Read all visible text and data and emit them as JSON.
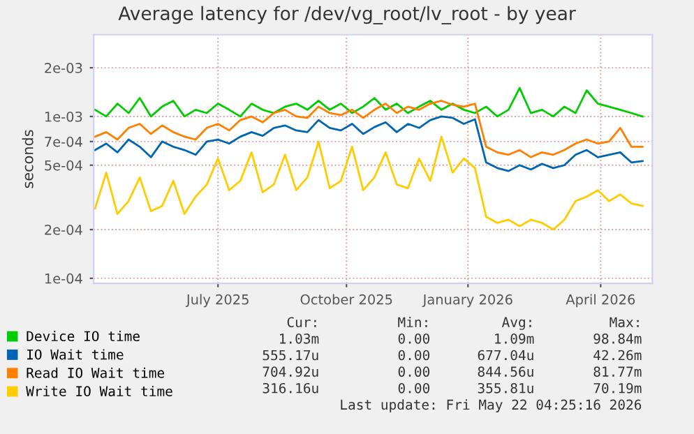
{
  "chart_data": {
    "type": "line",
    "title": "Average latency for /dev/vg_root/lv_root - by year",
    "ylabel": "seconds",
    "x": [
      "2025-04-18",
      "2025-04-26",
      "2025-05-04",
      "2025-05-12",
      "2025-05-20",
      "2025-05-28",
      "2025-06-05",
      "2025-06-13",
      "2025-06-21",
      "2025-06-29",
      "2025-07-07",
      "2025-07-15",
      "2025-07-23",
      "2025-07-31",
      "2025-08-08",
      "2025-08-16",
      "2025-08-24",
      "2025-09-01",
      "2025-09-09",
      "2025-09-17",
      "2025-09-25",
      "2025-10-03",
      "2025-10-11",
      "2025-10-19",
      "2025-10-27",
      "2025-11-04",
      "2025-11-12",
      "2025-11-20",
      "2025-11-28",
      "2025-12-06",
      "2025-12-14",
      "2025-12-22",
      "2025-12-30",
      "2026-01-07",
      "2026-01-15",
      "2026-01-23",
      "2026-01-31",
      "2026-02-08",
      "2026-02-16",
      "2026-02-24",
      "2026-03-04",
      "2026-03-12",
      "2026-03-20",
      "2026-03-28",
      "2026-04-05",
      "2026-04-13",
      "2026-04-21",
      "2026-04-29",
      "2026-05-07",
      "2026-05-15"
    ],
    "series": [
      {
        "name": "Device IO time",
        "color": "#00cc00",
        "values": [
          0.0011,
          0.001,
          0.0012,
          0.00105,
          0.0013,
          0.001,
          0.00115,
          0.00125,
          0.001,
          0.0011,
          0.00105,
          0.0012,
          0.0011,
          0.001,
          0.0012,
          0.0011,
          0.00105,
          0.00115,
          0.0012,
          0.0011,
          0.00125,
          0.0011,
          0.0012,
          0.00105,
          0.00115,
          0.0013,
          0.0011,
          0.0012,
          0.00105,
          0.00115,
          0.00125,
          0.0011,
          0.0012,
          0.0011,
          0.00105,
          0.00115,
          0.001,
          0.0011,
          0.0015,
          0.00105,
          0.0011,
          0.001,
          0.00115,
          0.00105,
          0.00145,
          0.0012,
          0.00115,
          0.0011,
          0.00105,
          0.001
        ]
      },
      {
        "name": "IO Wait time",
        "color": "#0066b3",
        "values": [
          0.00062,
          0.00068,
          0.0006,
          0.00072,
          0.00065,
          0.00056,
          0.0007,
          0.00065,
          0.00062,
          0.00058,
          0.0007,
          0.00072,
          0.00068,
          0.00075,
          0.0008,
          0.00076,
          0.00085,
          0.00088,
          0.00082,
          0.0008,
          0.00095,
          0.00085,
          0.00082,
          0.0009,
          0.00078,
          0.00086,
          0.00092,
          0.0008,
          0.0009,
          0.00085,
          0.00095,
          0.001,
          0.00098,
          0.0009,
          0.00096,
          0.00052,
          0.00048,
          0.00046,
          0.0005,
          0.00047,
          0.00051,
          0.00048,
          0.0005,
          0.00058,
          0.00062,
          0.00056,
          0.00058,
          0.0006,
          0.00052,
          0.00053
        ]
      },
      {
        "name": "Read IO Wait time",
        "color": "#ff8000",
        "values": [
          0.00075,
          0.0008,
          0.00072,
          0.00085,
          0.0009,
          0.00078,
          0.00088,
          0.0008,
          0.00075,
          0.00072,
          0.00085,
          0.0009,
          0.00082,
          0.00095,
          0.001,
          0.00092,
          0.00105,
          0.0011,
          0.001,
          0.00098,
          0.00115,
          0.00105,
          0.00102,
          0.0011,
          0.00098,
          0.0011,
          0.0012,
          0.00105,
          0.00115,
          0.0011,
          0.0012,
          0.00125,
          0.00118,
          0.00115,
          0.0012,
          0.00065,
          0.0006,
          0.00058,
          0.00062,
          0.00056,
          0.0006,
          0.00058,
          0.00062,
          0.00068,
          0.00072,
          0.00068,
          0.0007,
          0.00085,
          0.00065,
          0.00065
        ]
      },
      {
        "name": "Write IO Wait time",
        "color": "#ffcc00",
        "values": [
          0.00027,
          0.00045,
          0.00025,
          0.0003,
          0.00042,
          0.00026,
          0.00028,
          0.0004,
          0.00025,
          0.00032,
          0.00038,
          0.00055,
          0.00035,
          0.0004,
          0.0006,
          0.00034,
          0.00038,
          0.00058,
          0.00035,
          0.00042,
          0.0007,
          0.00036,
          0.0004,
          0.00065,
          0.00035,
          0.00042,
          0.0006,
          0.00038,
          0.00036,
          0.00055,
          0.0004,
          0.00075,
          0.00045,
          0.00055,
          0.00048,
          0.00024,
          0.00022,
          0.00023,
          0.00021,
          0.00023,
          0.00022,
          0.0002,
          0.00023,
          0.0003,
          0.00032,
          0.00035,
          0.0003,
          0.00033,
          0.00029,
          0.00028
        ]
      }
    ],
    "log": true,
    "ylim": [
      9.3e-05,
      0.0032
    ],
    "yticks": [
      {
        "value": 0.0001,
        "label": "1e-04"
      },
      {
        "value": 0.0002,
        "label": "2e-04"
      },
      {
        "value": 0.0005,
        "label": "5e-04"
      },
      {
        "value": 0.0007,
        "label": "7e-04"
      },
      {
        "value": 0.001,
        "label": "1e-03"
      },
      {
        "value": 0.002,
        "label": "2e-03"
      }
    ],
    "xlim": [
      "2025-04-17",
      "2026-05-22"
    ],
    "xticks": [
      {
        "value": "2025-07-15",
        "label": "July 2025"
      },
      {
        "value": "2025-10-15",
        "label": "October 2025"
      },
      {
        "value": "2026-01-10",
        "label": "January 2026"
      },
      {
        "value": "2026-04-15",
        "label": "April 2026"
      }
    ],
    "grid": true,
    "legend": "bottom",
    "annotations": [
      "Cur:",
      "Min:",
      "Avg:",
      "Max:",
      "1.03m",
      "0.00",
      "1.09m",
      "98.84m",
      "555.17u",
      "0.00",
      "677.04u",
      "42.26m",
      "704.92u",
      "0.00",
      "844.56u",
      "81.77m",
      "316.16u",
      "0.00",
      "355.81u",
      "70.19m",
      "Last update: Fri May 22 04:25:16 2026"
    ]
  }
}
